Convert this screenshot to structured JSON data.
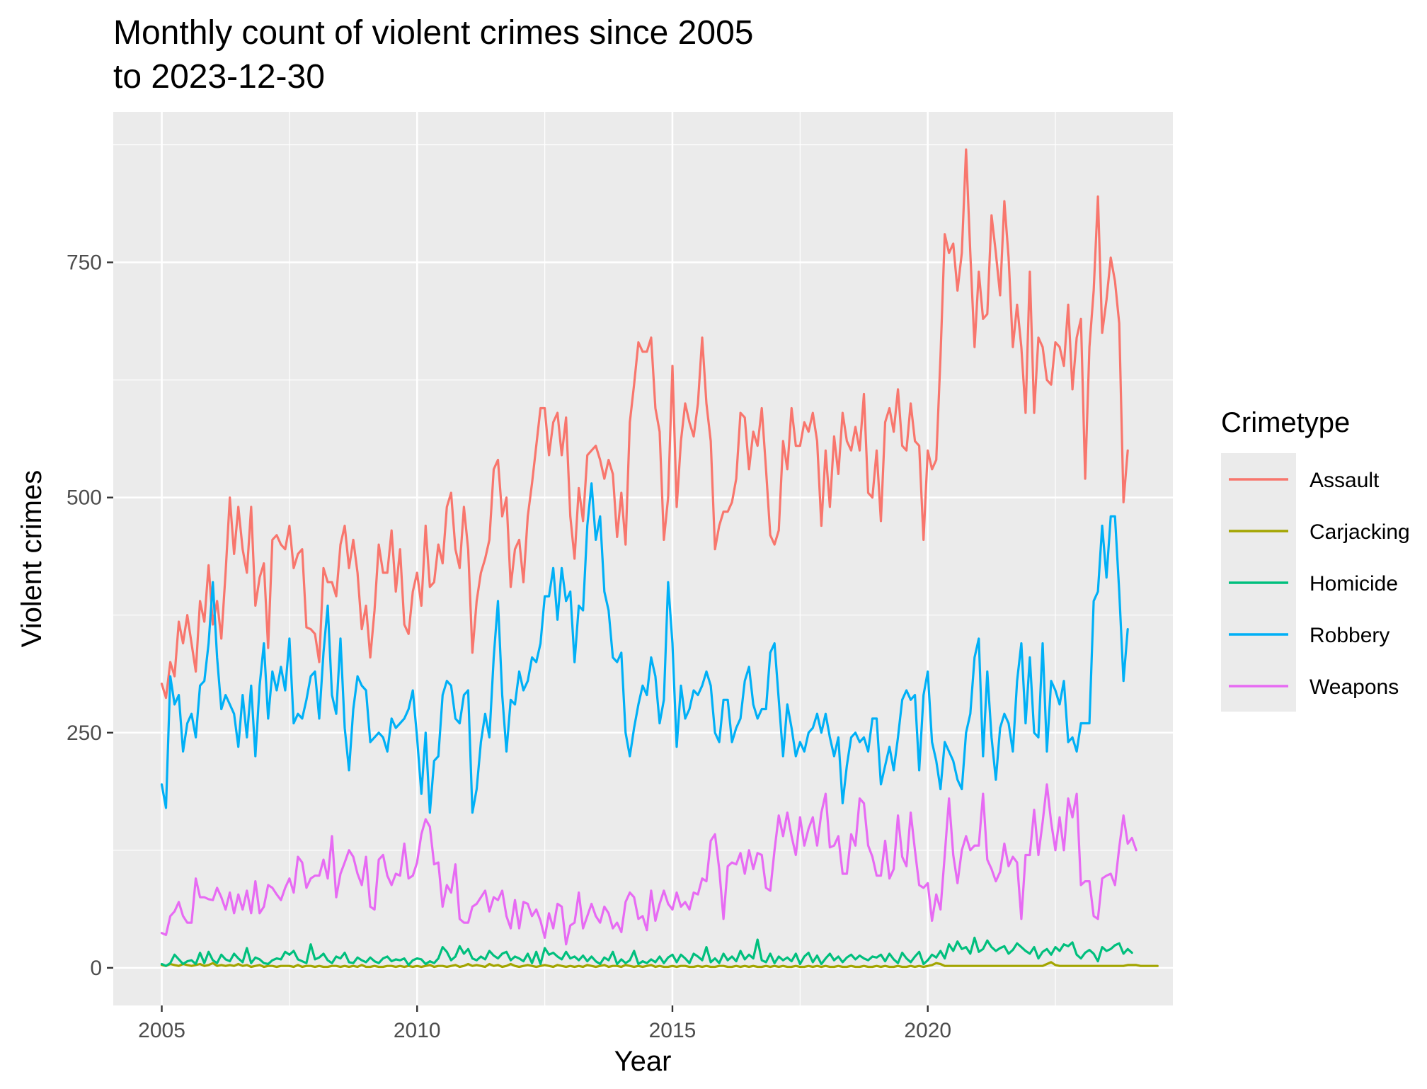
{
  "chart_data": {
    "type": "line",
    "title_lines": [
      "Monthly count of violent crimes since 2005",
      "to 2023-12-30"
    ],
    "xlabel": "Year",
    "ylabel": "Violent crimes",
    "x_ticks": [
      2005,
      2010,
      2015,
      2020
    ],
    "y_ticks": [
      0,
      250,
      500,
      750
    ],
    "xlim": [
      2004.05,
      2024.8
    ],
    "ylim": [
      -40,
      910
    ],
    "grid": true,
    "legend": {
      "title": "Crimetype",
      "position": "right"
    },
    "x_start": 2005.0,
    "x_step_years": 0.08333,
    "series": [
      {
        "name": "Assault",
        "color": "#F8766D",
        "values": [
          302,
          287,
          325,
          310,
          368,
          345,
          375,
          345,
          315,
          390,
          368,
          428,
          365,
          390,
          350,
          420,
          500,
          440,
          490,
          445,
          420,
          490,
          385,
          415,
          430,
          340,
          455,
          460,
          450,
          445,
          470,
          425,
          440,
          445,
          362,
          360,
          355,
          325,
          425,
          410,
          410,
          395,
          450,
          470,
          425,
          455,
          420,
          360,
          385,
          330,
          380,
          450,
          420,
          420,
          465,
          400,
          445,
          365,
          355,
          400,
          420,
          385,
          470,
          405,
          410,
          450,
          430,
          490,
          505,
          445,
          425,
          490,
          445,
          335,
          390,
          420,
          435,
          455,
          530,
          540,
          480,
          500,
          405,
          445,
          455,
          410,
          480,
          515,
          555,
          595,
          595,
          545,
          580,
          590,
          545,
          585,
          480,
          435,
          510,
          475,
          545,
          550,
          555,
          540,
          520,
          540,
          525,
          458,
          505,
          450,
          580,
          620,
          665,
          655,
          655,
          670,
          595,
          570,
          455,
          500,
          640,
          490,
          560,
          600,
          580,
          565,
          600,
          670,
          600,
          560,
          445,
          470,
          485,
          485,
          495,
          520,
          590,
          585,
          530,
          570,
          555,
          595,
          530,
          460,
          450,
          465,
          560,
          530,
          595,
          555,
          555,
          580,
          570,
          590,
          560,
          470,
          550,
          490,
          565,
          525,
          590,
          560,
          550,
          575,
          550,
          610,
          505,
          500,
          550,
          475,
          580,
          595,
          570,
          615,
          555,
          550,
          600,
          560,
          555,
          455,
          550,
          530,
          540,
          650,
          780,
          760,
          770,
          720,
          760,
          870,
          760,
          660,
          740,
          690,
          695,
          800,
          760,
          715,
          815,
          755,
          660,
          705,
          660,
          590,
          740,
          590,
          670,
          660,
          625,
          620,
          665,
          660,
          640,
          705,
          615,
          670,
          690,
          520,
          660,
          720,
          820,
          675,
          710,
          755,
          730,
          685,
          495,
          550
        ]
      },
      {
        "name": "Carjacking",
        "color": "#A3A500",
        "values": [
          3,
          2,
          4,
          3,
          2,
          4,
          3,
          2,
          3,
          4,
          2,
          3,
          5,
          2,
          3,
          2,
          3,
          2,
          4,
          2,
          3,
          1,
          2,
          3,
          1,
          2,
          2,
          1,
          2,
          2,
          2,
          1,
          3,
          1,
          2,
          2,
          1,
          2,
          1,
          1,
          2,
          2,
          1,
          2,
          1,
          2,
          1,
          3,
          1,
          1,
          2,
          1,
          1,
          2,
          2,
          1,
          2,
          1,
          2,
          1,
          2,
          1,
          2,
          3,
          1,
          2,
          2,
          1,
          2,
          3,
          1,
          2,
          4,
          2,
          3,
          2,
          1,
          4,
          2,
          3,
          1,
          2,
          4,
          2,
          1,
          2,
          3,
          2,
          1,
          2,
          3,
          2,
          1,
          3,
          2,
          1,
          2,
          1,
          2,
          1,
          3,
          2,
          1,
          2,
          3,
          1,
          2,
          2,
          1,
          3,
          2,
          1,
          2,
          1,
          2,
          3,
          1,
          2,
          1,
          1,
          2,
          1,
          2,
          2,
          1,
          1,
          2,
          1,
          2,
          1,
          1,
          2,
          2,
          1,
          1,
          2,
          1,
          2,
          1,
          2,
          1,
          1,
          2,
          1,
          2,
          1,
          2,
          1,
          1,
          2,
          1,
          1,
          2,
          1,
          2,
          1,
          2,
          1,
          1,
          2,
          1,
          1,
          2,
          1,
          1,
          2,
          1,
          1,
          2,
          1,
          2,
          1,
          1,
          2,
          1,
          1,
          2,
          1,
          2,
          1,
          2,
          3,
          5,
          4,
          2,
          2,
          2,
          2,
          2,
          2,
          2,
          2,
          2,
          2,
          2,
          2,
          2,
          2,
          2,
          2,
          2,
          2,
          2,
          2,
          2,
          2,
          2,
          2,
          4,
          6,
          3,
          2,
          2,
          2,
          2,
          2,
          2,
          2,
          2,
          2,
          2,
          2,
          2,
          2,
          2,
          2,
          2,
          3,
          3,
          3,
          2,
          2,
          2,
          2,
          2
        ]
      },
      {
        "name": "Homicide",
        "color": "#00BF7D",
        "values": [
          4,
          2,
          5,
          14,
          9,
          4,
          7,
          8,
          4,
          16,
          5,
          17,
          8,
          5,
          14,
          9,
          7,
          15,
          10,
          6,
          21,
          5,
          11,
          9,
          5,
          4,
          8,
          10,
          9,
          17,
          14,
          18,
          9,
          7,
          5,
          25,
          9,
          11,
          15,
          8,
          5,
          12,
          10,
          16,
          6,
          5,
          11,
          8,
          6,
          11,
          7,
          5,
          10,
          12,
          7,
          9,
          8,
          10,
          3,
          8,
          10,
          9,
          4,
          7,
          5,
          10,
          22,
          17,
          8,
          12,
          23,
          15,
          20,
          10,
          8,
          12,
          9,
          18,
          13,
          10,
          15,
          17,
          8,
          12,
          10,
          7,
          15,
          5,
          17,
          4,
          21,
          14,
          16,
          12,
          9,
          17,
          10,
          12,
          8,
          13,
          7,
          12,
          7,
          4,
          11,
          8,
          17,
          4,
          9,
          5,
          8,
          18,
          4,
          7,
          5,
          9,
          6,
          12,
          5,
          11,
          14,
          6,
          14,
          10,
          5,
          15,
          12,
          8,
          22,
          6,
          10,
          5,
          15,
          8,
          12,
          7,
          18,
          9,
          14,
          10,
          30,
          8,
          6,
          15,
          5,
          12,
          8,
          11,
          7,
          15,
          4,
          12,
          16,
          6,
          13,
          4,
          10,
          15,
          8,
          12,
          6,
          11,
          14,
          9,
          13,
          10,
          8,
          12,
          11,
          14,
          7,
          15,
          9,
          5,
          16,
          10,
          6,
          12,
          17,
          4,
          8,
          14,
          11,
          18,
          10,
          25,
          18,
          28,
          20,
          22,
          15,
          32,
          17,
          20,
          29,
          22,
          18,
          21,
          23,
          15,
          19,
          26,
          22,
          18,
          15,
          22,
          10,
          17,
          20,
          14,
          22,
          18,
          25,
          23,
          27,
          14,
          10,
          16,
          19,
          15,
          7,
          22,
          18,
          20,
          24,
          26,
          15,
          20,
          16
        ]
      },
      {
        "name": "Robbery",
        "color": "#00B0F6",
        "values": [
          195,
          170,
          310,
          280,
          290,
          230,
          260,
          270,
          245,
          300,
          305,
          345,
          410,
          330,
          275,
          290,
          280,
          270,
          235,
          290,
          245,
          300,
          225,
          300,
          345,
          265,
          315,
          295,
          320,
          295,
          350,
          260,
          270,
          265,
          285,
          310,
          315,
          265,
          335,
          385,
          290,
          270,
          350,
          255,
          210,
          275,
          310,
          300,
          295,
          240,
          245,
          250,
          245,
          230,
          265,
          255,
          260,
          265,
          275,
          295,
          245,
          185,
          250,
          165,
          220,
          225,
          290,
          305,
          300,
          265,
          260,
          290,
          295,
          165,
          190,
          240,
          270,
          245,
          330,
          390,
          290,
          230,
          285,
          280,
          315,
          295,
          305,
          330,
          325,
          345,
          395,
          395,
          425,
          370,
          425,
          390,
          400,
          325,
          385,
          380,
          470,
          515,
          455,
          480,
          400,
          380,
          330,
          325,
          335,
          250,
          225,
          255,
          280,
          300,
          290,
          330,
          310,
          260,
          285,
          410,
          345,
          235,
          300,
          265,
          275,
          295,
          290,
          300,
          315,
          300,
          250,
          240,
          285,
          285,
          240,
          255,
          265,
          305,
          320,
          280,
          265,
          275,
          275,
          335,
          345,
          285,
          225,
          280,
          255,
          225,
          240,
          230,
          250,
          255,
          270,
          250,
          270,
          245,
          225,
          245,
          175,
          215,
          245,
          250,
          240,
          245,
          230,
          265,
          265,
          195,
          215,
          235,
          210,
          245,
          285,
          295,
          285,
          290,
          210,
          290,
          315,
          240,
          220,
          190,
          240,
          230,
          220,
          200,
          190,
          250,
          270,
          330,
          350,
          225,
          315,
          245,
          200,
          255,
          270,
          260,
          230,
          305,
          345,
          260,
          330,
          250,
          245,
          345,
          230,
          305,
          295,
          280,
          305,
          240,
          245,
          230,
          260,
          260,
          260,
          390,
          400,
          470,
          415,
          480,
          480,
          400,
          305,
          360
        ]
      },
      {
        "name": "Weapons",
        "color": "#E76BF3",
        "values": [
          37,
          35,
          55,
          60,
          70,
          55,
          48,
          48,
          95,
          75,
          75,
          73,
          72,
          85,
          75,
          62,
          80,
          58,
          78,
          62,
          82,
          58,
          92,
          58,
          65,
          88,
          85,
          78,
          72,
          85,
          95,
          80,
          118,
          112,
          85,
          95,
          98,
          98,
          115,
          95,
          140,
          75,
          100,
          112,
          125,
          118,
          100,
          88,
          118,
          65,
          62,
          115,
          120,
          98,
          88,
          100,
          98,
          132,
          95,
          98,
          112,
          142,
          158,
          150,
          110,
          112,
          65,
          88,
          80,
          110,
          52,
          48,
          48,
          65,
          68,
          75,
          82,
          60,
          75,
          72,
          82,
          55,
          42,
          72,
          42,
          70,
          68,
          55,
          62,
          50,
          32,
          58,
          42,
          68,
          65,
          25,
          45,
          48,
          80,
          42,
          55,
          68,
          55,
          48,
          65,
          58,
          42,
          48,
          38,
          70,
          80,
          75,
          52,
          55,
          40,
          82,
          50,
          68,
          82,
          68,
          62,
          80,
          65,
          70,
          62,
          80,
          78,
          95,
          92,
          135,
          142,
          105,
          52,
          108,
          112,
          110,
          122,
          100,
          125,
          105,
          122,
          120,
          85,
          82,
          125,
          162,
          140,
          165,
          140,
          120,
          160,
          130,
          148,
          160,
          130,
          165,
          185,
          128,
          130,
          140,
          100,
          100,
          142,
          130,
          180,
          175,
          130,
          118,
          98,
          98,
          135,
          95,
          105,
          162,
          118,
          108,
          165,
          125,
          88,
          85,
          90,
          50,
          78,
          62,
          120,
          180,
          120,
          90,
          125,
          140,
          125,
          130,
          130,
          185,
          115,
          105,
          92,
          102,
          132,
          108,
          118,
          112,
          52,
          120,
          120,
          168,
          120,
          155,
          195,
          155,
          125,
          160,
          125,
          180,
          160,
          185,
          88,
          92,
          92,
          55,
          52,
          95,
          98,
          100,
          88,
          128,
          162,
          132,
          138,
          125
        ]
      }
    ]
  }
}
